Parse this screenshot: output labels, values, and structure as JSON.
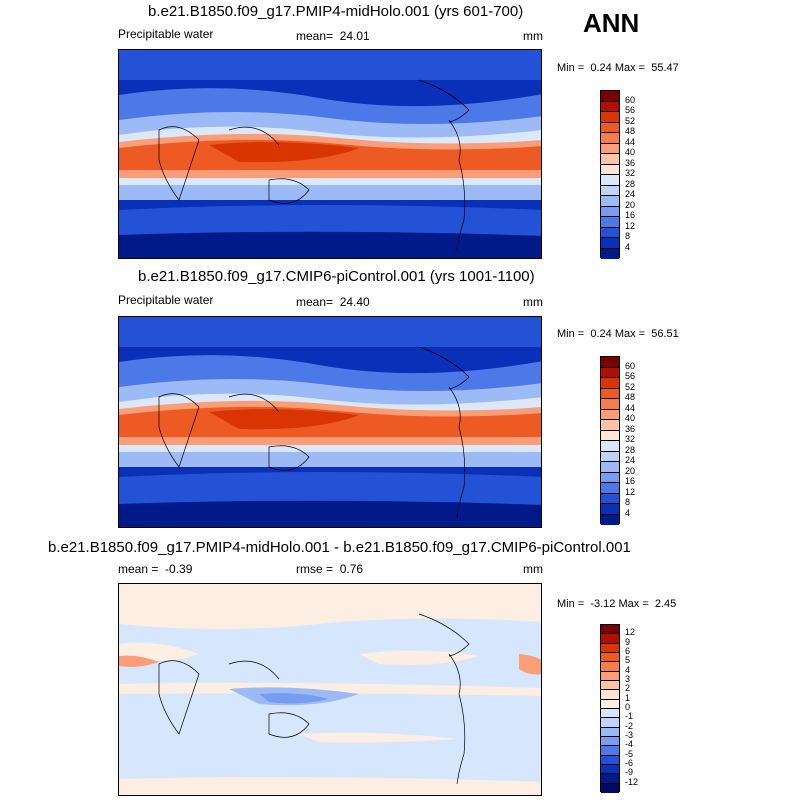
{
  "season": "ANN",
  "panels": [
    {
      "title": "b.e21.B1850.f09_g17.PMIP4-midHolo.001 (yrs 601-700)",
      "left_label": "Precipitable water",
      "mean_label": "mean=",
      "mean_value": "24.01",
      "units": "mm",
      "min_label": "Min =",
      "min_value": "0.24",
      "max_label": "Max =",
      "max_value": "55.47",
      "colorbar_labels": [
        "60",
        "56",
        "52",
        "48",
        "44",
        "40",
        "36",
        "32",
        "28",
        "24",
        "20",
        "16",
        "12",
        "8",
        "4"
      ],
      "colors": [
        "#7a0000",
        "#b30f00",
        "#d93500",
        "#ee5a24",
        "#f77c4d",
        "#fb9d77",
        "#fdc4a5",
        "#fde6d5",
        "#dbe8fc",
        "#bfd4f8",
        "#9cbaf5",
        "#789df0",
        "#4c78e8",
        "#2352d6",
        "#0a2fb8",
        "#001a8a"
      ]
    },
    {
      "title": "b.e21.B1850.f09_g17.CMIP6-piControl.001 (yrs 1001-1100)",
      "left_label": "Precipitable water",
      "mean_label": "mean=",
      "mean_value": "24.40",
      "units": "mm",
      "min_label": "Min =",
      "min_value": "0.24",
      "max_label": "Max =",
      "max_value": "56.51",
      "colorbar_labels": [
        "60",
        "56",
        "52",
        "48",
        "44",
        "40",
        "36",
        "32",
        "28",
        "24",
        "20",
        "16",
        "12",
        "8",
        "4"
      ],
      "colors": [
        "#7a0000",
        "#b30f00",
        "#d93500",
        "#ee5a24",
        "#f77c4d",
        "#fb9d77",
        "#fdc4a5",
        "#fde6d5",
        "#dbe8fc",
        "#bfd4f8",
        "#9cbaf5",
        "#789df0",
        "#4c78e8",
        "#2352d6",
        "#0a2fb8",
        "#001a8a"
      ]
    },
    {
      "title": "b.e21.B1850.f09_g17.PMIP4-midHolo.001 - b.e21.B1850.f09_g17.CMIP6-piControl.001",
      "left_label": "mean =",
      "mean_label": "",
      "mean_value": "-0.39",
      "rmse_label": "rmse =",
      "rmse_value": "0.76",
      "units": "mm",
      "min_label": "Min =",
      "min_value": "-3.12",
      "max_label": "Max =",
      "max_value": "2.45",
      "colorbar_labels": [
        "12",
        "9",
        "6",
        "5",
        "4",
        "3",
        "2",
        "1",
        "0",
        "-1",
        "-2",
        "-3",
        "-4",
        "-5",
        "-6",
        "-9",
        "-12"
      ],
      "colors": [
        "#7a0000",
        "#b30f00",
        "#d93500",
        "#ee5a24",
        "#f77c4d",
        "#fb9d77",
        "#fdc4a5",
        "#fde6d5",
        "#fdeee3",
        "#d6e6fd",
        "#bfd4f8",
        "#9cbaf5",
        "#789df0",
        "#4c78e8",
        "#2352d6",
        "#0a2fb8",
        "#001a8a",
        "#000a60"
      ]
    }
  ]
}
